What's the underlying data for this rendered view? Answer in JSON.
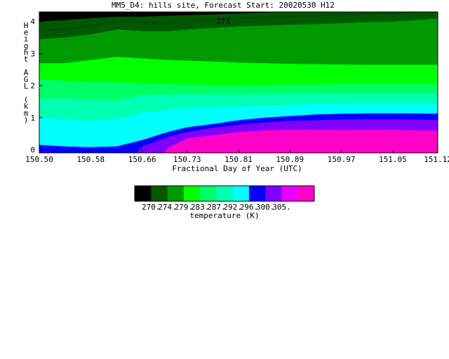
{
  "title": "MM5_D4: hills site,  Forecast Start: 20020530 H12",
  "chart_data": {
    "type": "heatmap",
    "title": "MM5_D4: hills site,  Forecast Start: 20020530 H12",
    "xlabel": "Fractional Day of Year (UTC)",
    "ylabel": "Height AGL (km)",
    "ylabel_chars": [
      "H",
      "e",
      "i",
      "g",
      "h",
      "t",
      "",
      "A",
      "G",
      "L",
      "",
      "(",
      "k",
      "m",
      ")"
    ],
    "xlim": [
      150.5,
      151.12
    ],
    "ylim": [
      -0.1,
      4.3
    ],
    "x_ticks": [
      150.5,
      150.58,
      150.66,
      150.73,
      150.81,
      150.89,
      150.97,
      151.05,
      151.12
    ],
    "x_tick_labels": [
      "150.50",
      "150.58",
      "150.66",
      "150.73",
      "150.81",
      "150.89",
      "150.97",
      "151.05",
      "151.12"
    ],
    "y_ticks": [
      0,
      1,
      2,
      3,
      4
    ],
    "y_tick_labels": [
      "0",
      "1",
      "2",
      "3",
      "4"
    ],
    "contour_annotation": "273",
    "time": [
      150.5,
      150.54,
      150.58,
      150.62,
      150.66,
      150.7,
      150.73,
      150.77,
      150.81,
      150.85,
      150.89,
      150.93,
      150.97,
      151.01,
      151.05,
      151.09,
      151.12
    ],
    "isotherm_heights_km": [
      {
        "level": 305,
        "heights": [
          -1,
          -1,
          -1,
          -1,
          -1,
          0.05,
          0.35,
          0.45,
          0.55,
          0.6,
          0.62,
          0.62,
          0.62,
          0.62,
          0.62,
          0.6,
          0.6
        ]
      },
      {
        "level": 300,
        "heights": [
          -1,
          -1,
          -1,
          -1,
          0.1,
          0.4,
          0.55,
          0.68,
          0.78,
          0.85,
          0.9,
          0.92,
          0.94,
          0.95,
          0.95,
          0.94,
          0.93
        ]
      },
      {
        "level": 296,
        "heights": [
          0.15,
          0.1,
          0.08,
          0.1,
          0.3,
          0.55,
          0.7,
          0.8,
          0.92,
          1.0,
          1.05,
          1.1,
          1.12,
          1.13,
          1.13,
          1.13,
          1.12
        ]
      },
      {
        "level": 292,
        "heights": [
          1.0,
          0.95,
          0.9,
          0.95,
          1.15,
          1.25,
          1.3,
          1.32,
          1.35,
          1.38,
          1.4,
          1.42,
          1.43,
          1.44,
          1.44,
          1.44,
          1.44
        ]
      },
      {
        "level": 287,
        "heights": [
          1.6,
          1.6,
          1.55,
          1.55,
          1.7,
          1.72,
          1.73,
          1.73,
          1.73,
          1.74,
          1.75,
          1.75,
          1.76,
          1.76,
          1.76,
          1.76,
          1.76
        ]
      },
      {
        "level": 283,
        "heights": [
          2.2,
          2.15,
          2.12,
          2.1,
          2.08,
          2.05,
          2.03,
          2.02,
          2.02,
          2.02,
          2.03,
          2.03,
          2.04,
          2.04,
          2.05,
          2.05,
          2.05
        ]
      },
      {
        "level": 279,
        "heights": [
          2.7,
          2.7,
          2.8,
          2.9,
          2.85,
          2.8,
          2.78,
          2.75,
          2.72,
          2.7,
          2.68,
          2.67,
          2.66,
          2.65,
          2.65,
          2.65,
          2.65
        ]
      },
      {
        "level": 274,
        "heights": [
          3.45,
          3.5,
          3.6,
          3.75,
          3.7,
          3.7,
          3.75,
          3.8,
          3.85,
          3.87,
          3.9,
          3.92,
          3.95,
          3.98,
          4.0,
          4.05,
          4.1
        ]
      },
      {
        "level": 270,
        "heights": [
          4.0,
          4.05,
          4.1,
          4.15,
          4.15,
          4.18,
          4.2,
          4.22,
          4.25,
          4.28,
          4.3,
          4.35,
          4.4,
          4.4,
          4.4,
          4.4,
          4.4
        ]
      }
    ],
    "colorbar": {
      "label": "temperature (K)",
      "tick_labels": [
        "270.",
        "274.",
        "279.",
        "283.",
        "287.",
        "292.",
        "296.",
        "300.",
        "305."
      ],
      "colors": [
        "#000000",
        "#005800",
        "#009a00",
        "#00ff00",
        "#00ff66",
        "#00ffb2",
        "#00ffff",
        "#0000ff",
        "#8000ff",
        "#e800ff",
        "#ff00c8"
      ]
    },
    "band_colors": {
      "above_270": "#000000",
      "270": "#005800",
      "274": "#009a00",
      "279": "#00ff00",
      "283": "#00ff66",
      "287": "#00ffb2",
      "292": "#00ffff",
      "296": "#0000ff",
      "300": "#8000ff",
      "305": "#e800ff",
      "below_305": "#ff00c8"
    }
  }
}
